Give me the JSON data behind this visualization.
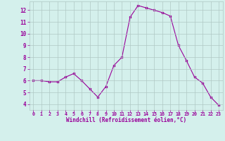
{
  "x": [
    0,
    1,
    2,
    3,
    4,
    5,
    6,
    7,
    8,
    9,
    10,
    11,
    12,
    13,
    14,
    15,
    16,
    17,
    18,
    19,
    20,
    21,
    22,
    23
  ],
  "y": [
    6.0,
    6.0,
    5.9,
    5.9,
    6.3,
    6.6,
    6.0,
    5.3,
    4.6,
    5.5,
    7.3,
    8.0,
    11.4,
    12.4,
    12.2,
    12.0,
    11.8,
    11.5,
    9.0,
    7.7,
    6.3,
    5.8,
    4.6,
    3.9
  ],
  "line_color": "#990099",
  "marker": "s",
  "marker_size": 2,
  "bg_color": "#d4f0ec",
  "grid_color": "#b0c8c4",
  "xlabel": "Windchill (Refroidissement éolien,°C)",
  "xlabel_color": "#990099",
  "tick_color": "#990099",
  "xlim": [
    -0.5,
    23.5
  ],
  "ylim": [
    3.5,
    12.75
  ],
  "yticks": [
    4,
    5,
    6,
    7,
    8,
    9,
    10,
    11,
    12
  ],
  "xticks": [
    0,
    1,
    2,
    3,
    4,
    5,
    6,
    7,
    8,
    9,
    10,
    11,
    12,
    13,
    14,
    15,
    16,
    17,
    18,
    19,
    20,
    21,
    22,
    23
  ],
  "figsize": [
    3.2,
    2.0
  ],
  "dpi": 100
}
